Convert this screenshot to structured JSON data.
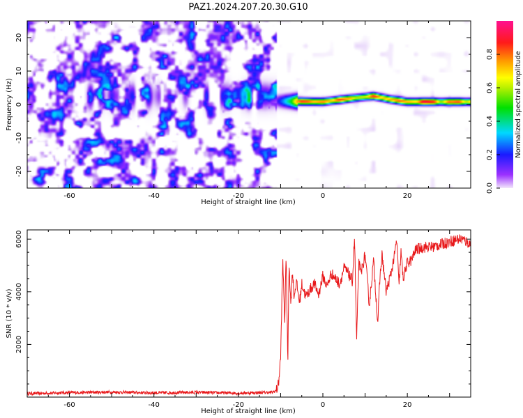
{
  "title": "PAZ1.2024.207.20.30.G10",
  "colors": {
    "snr_line": "#e8191b",
    "axis": "#000000"
  },
  "chart_data": [
    {
      "type": "heatmap",
      "xlabel": "Height of straight line (km)",
      "ylabel": "Frequency (Hz)",
      "xlim": [
        -70,
        35
      ],
      "ylim": [
        -25,
        25
      ],
      "xticks": [
        "-60",
        "-40",
        "-20",
        "0",
        "20"
      ],
      "xtick_values": [
        -60,
        -40,
        -20,
        0,
        20
      ],
      "yticks": [
        "20",
        "10",
        "0",
        "-10",
        "-20"
      ],
      "ytick_values": [
        20,
        10,
        0,
        -10,
        -20
      ],
      "colorbar": {
        "label": "Normalized spectral amplitude",
        "range": [
          0,
          1
        ],
        "ticks": [
          "0.0",
          "0.2",
          "0.4",
          "0.6",
          "0.8"
        ],
        "tick_values": [
          0.0,
          0.2,
          0.4,
          0.6,
          0.8
        ],
        "colormap": "rainbow (purple-blue-cyan-green-yellow-orange-red-magenta)"
      },
      "features": {
        "noise_region_km": [
          -70,
          -11
        ],
        "noise_amplitude": 0.12,
        "carrier_region_km": [
          -11,
          35
        ],
        "carrier_frequency_hz": [
          [
            -11,
            1.0
          ],
          [
            0,
            0.8
          ],
          [
            8,
            2.0
          ],
          [
            12,
            2.5
          ],
          [
            16,
            1.5
          ],
          [
            20,
            0.8
          ],
          [
            35,
            0.8
          ]
        ],
        "carrier_peak_amplitude": 0.8
      }
    },
    {
      "type": "line",
      "xlabel": "Height of straight line (km)",
      "ylabel": "SNR (10 * v/v)",
      "xlim": [
        -70,
        35
      ],
      "ylim": [
        0,
        6350
      ],
      "xticks": [
        "-60",
        "-40",
        "-20",
        "0",
        "20"
      ],
      "xtick_values": [
        -60,
        -40,
        -20,
        0,
        20
      ],
      "yticks": [
        "2000",
        "4000",
        "6000"
      ],
      "ytick_values": [
        2000,
        4000,
        6000
      ],
      "series": [
        {
          "x": [
            -70,
            -60,
            -50,
            -40,
            -30,
            -20,
            -12,
            -11,
            -10.5,
            -10,
            -9.5,
            -9,
            -8.7,
            -8.3,
            -8,
            -7.6,
            -7.2,
            -6.8,
            -6.3,
            -5.5,
            -5,
            -4,
            -3,
            -2,
            -1,
            0,
            1,
            2,
            3,
            4,
            5,
            6,
            7,
            7.5,
            8,
            8.5,
            9,
            10,
            11,
            12,
            13,
            13.5,
            14,
            15,
            16,
            17,
            17.5,
            18,
            18.5,
            19,
            20,
            21,
            22,
            24,
            26,
            28,
            30,
            32,
            33,
            34,
            35
          ],
          "y": [
            130,
            170,
            190,
            160,
            180,
            150,
            180,
            250,
            500,
            1500,
            5200,
            2800,
            5600,
            1200,
            5200,
            3500,
            4800,
            3800,
            4400,
            3600,
            4300,
            3800,
            4100,
            4300,
            3900,
            4600,
            4200,
            4700,
            4500,
            4300,
            4900,
            4700,
            4400,
            6100,
            2100,
            5100,
            4700,
            5400,
            3500,
            5200,
            2800,
            4500,
            5400,
            4000,
            4600,
            5400,
            6000,
            4200,
            5500,
            4500,
            5100,
            5200,
            5600,
            5700,
            5700,
            5800,
            5900,
            6000,
            6000,
            5900,
            5800
          ]
        }
      ]
    }
  ]
}
